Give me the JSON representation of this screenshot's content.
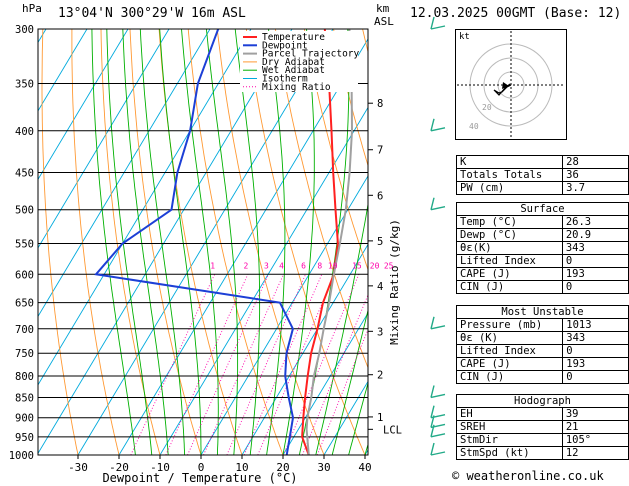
{
  "header": {
    "location": "13°04'N  300°29'W  16m  ASL",
    "hpa": "hPa",
    "km": "km",
    "asl": "ASL",
    "datetime": "12.03.2025  00GMT  (Base: 12)"
  },
  "legend": [
    "Temperature",
    "Dewpoint",
    "Parcel Trajectory",
    "Dry Adiabat",
    "Wet Adiabat",
    "Isotherm",
    "Mixing Ratio"
  ],
  "colors": {
    "temperature": "#ff2020",
    "dewpoint": "#1c3fd6",
    "parcel": "#a0a0a0",
    "dry_adiabat": "#ff9933",
    "wet_adiabat": "#00b000",
    "isotherm": "#00aadd",
    "mixing_ratio": "#ff00aa"
  },
  "chart_data": {
    "type": "line",
    "title": "",
    "xlabel": "Dewpoint / Temperature (°C)",
    "ylabel_right": "Mixing Ratio (g/kg)",
    "x_ticks": [
      -30,
      -20,
      -10,
      0,
      10,
      20,
      30,
      40
    ],
    "pressure_levels": [
      300,
      350,
      400,
      450,
      500,
      550,
      600,
      650,
      700,
      750,
      800,
      850,
      900,
      950,
      1000
    ],
    "height_km_ticks": [
      {
        "label": "8",
        "p": 370
      },
      {
        "label": "7",
        "p": 422
      },
      {
        "label": "6",
        "p": 480
      },
      {
        "label": "5",
        "p": 546
      },
      {
        "label": "4",
        "p": 620
      },
      {
        "label": "3",
        "p": 705
      },
      {
        "label": "2",
        "p": 797
      },
      {
        "label": "1",
        "p": 898
      },
      {
        "label": "LCL",
        "p": 930
      }
    ],
    "mixing_ratio_labels": [
      "1",
      "2",
      "3",
      "4",
      "6",
      "8",
      "10",
      "15",
      "20",
      "25"
    ],
    "mixing_ratio_values": [
      1,
      2,
      3,
      4,
      6,
      8,
      10,
      15,
      20,
      25
    ],
    "series": [
      {
        "name": "Temperature",
        "points": [
          [
            1000,
            26.3
          ],
          [
            950,
            22
          ],
          [
            900,
            19.5
          ],
          [
            850,
            17
          ],
          [
            800,
            14.5
          ],
          [
            750,
            12
          ],
          [
            700,
            10
          ],
          [
            650,
            7.5
          ],
          [
            600,
            6
          ],
          [
            550,
            2.5
          ],
          [
            500,
            -3
          ],
          [
            450,
            -9
          ],
          [
            400,
            -15.5
          ],
          [
            350,
            -23
          ],
          [
            300,
            -32
          ]
        ]
      },
      {
        "name": "Dewpoint",
        "points": [
          [
            1000,
            20.9
          ],
          [
            950,
            19
          ],
          [
            900,
            17
          ],
          [
            850,
            13
          ],
          [
            800,
            9
          ],
          [
            750,
            6
          ],
          [
            700,
            4
          ],
          [
            650,
            -3
          ],
          [
            600,
            -52
          ],
          [
            550,
            -50
          ],
          [
            500,
            -43
          ],
          [
            450,
            -47
          ],
          [
            400,
            -50
          ],
          [
            350,
            -55
          ],
          [
            300,
            -58
          ]
        ]
      },
      {
        "name": "Parcel Trajectory",
        "points": [
          [
            1000,
            26.3
          ],
          [
            930,
            22
          ],
          [
            900,
            20.5
          ],
          [
            850,
            18.5
          ],
          [
            800,
            16
          ],
          [
            750,
            14
          ],
          [
            700,
            11.5
          ],
          [
            650,
            9
          ],
          [
            600,
            6
          ],
          [
            550,
            3
          ],
          [
            500,
            -0.5
          ],
          [
            450,
            -5
          ],
          [
            400,
            -10.5
          ],
          [
            350,
            -17.5
          ],
          [
            300,
            -26
          ]
        ]
      }
    ],
    "wind_barbs_p": [
      1000,
      950,
      925,
      900,
      850,
      700,
      500,
      400,
      300
    ],
    "xlim": [
      -40,
      40
    ],
    "ylim": [
      1000,
      300
    ]
  },
  "hodograph": {
    "label": "kt",
    "ring_labels": [
      "20",
      "40"
    ]
  },
  "indices": [
    {
      "k": "K",
      "v": "28"
    },
    {
      "k": "Totals Totals",
      "v": "36"
    },
    {
      "k": "PW (cm)",
      "v": "3.7"
    }
  ],
  "surface": {
    "title": "Surface",
    "rows": [
      {
        "k": "Temp (°C)",
        "v": "26.3"
      },
      {
        "k": "Dewp (°C)",
        "v": "20.9"
      },
      {
        "k": "θε(K)",
        "v": "343"
      },
      {
        "k": "Lifted Index",
        "v": "0"
      },
      {
        "k": "CAPE (J)",
        "v": "193"
      },
      {
        "k": "CIN (J)",
        "v": "0"
      }
    ]
  },
  "most_unstable": {
    "title": "Most Unstable",
    "rows": [
      {
        "k": "Pressure (mb)",
        "v": "1013"
      },
      {
        "k": "θε (K)",
        "v": "343"
      },
      {
        "k": "Lifted Index",
        "v": "0"
      },
      {
        "k": "CAPE (J)",
        "v": "193"
      },
      {
        "k": "CIN (J)",
        "v": "0"
      }
    ]
  },
  "hodo_table": {
    "title": "Hodograph",
    "rows": [
      {
        "k": "EH",
        "v": "39"
      },
      {
        "k": "SREH",
        "v": "21"
      },
      {
        "k": "StmDir",
        "v": "105°"
      },
      {
        "k": "StmSpd (kt)",
        "v": "12"
      }
    ]
  },
  "footer": "© weatheronline.co.uk"
}
